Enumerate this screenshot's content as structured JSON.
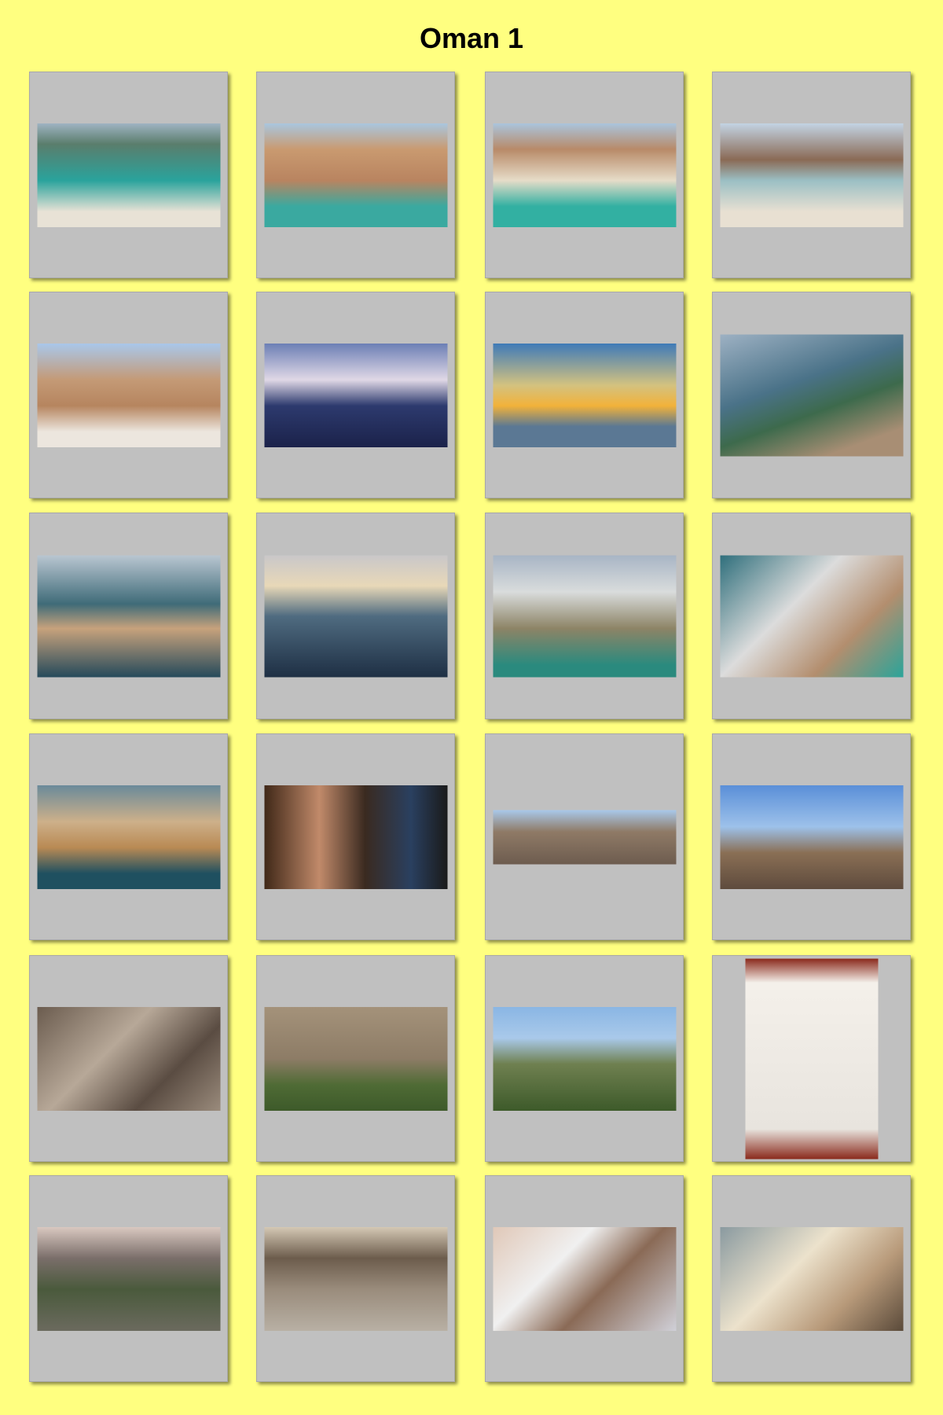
{
  "title": "Oman 1"
}
